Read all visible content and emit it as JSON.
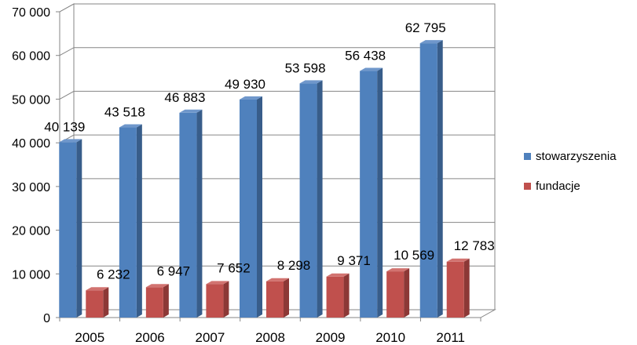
{
  "chart_data": {
    "type": "bar",
    "categories": [
      "2005",
      "2006",
      "2007",
      "2008",
      "2009",
      "2010",
      "2011"
    ],
    "series": [
      {
        "name": "stowarzyszenia",
        "values": [
          40139,
          43518,
          46883,
          49930,
          53598,
          56438,
          62795
        ],
        "labels": [
          "40 139",
          "43 518",
          "46 883",
          "49 930",
          "53 598",
          "56 438",
          "62 795"
        ],
        "color": "#4F81BD",
        "side": "#385D8A",
        "top": "#6F97CB"
      },
      {
        "name": "fundacje",
        "values": [
          6232,
          6947,
          7652,
          8298,
          9371,
          10569,
          12783
        ],
        "labels": [
          "6 232",
          "6 947",
          "7 652",
          "8 298",
          "9 371",
          "10 569",
          "12 783"
        ],
        "color": "#C0504D",
        "side": "#8C3836",
        "top": "#D27370"
      }
    ],
    "y_ticks": [
      "0",
      "10 000",
      "20 000",
      "30 000",
      "40 000",
      "50 000",
      "60 000",
      "70 000"
    ],
    "ylim": [
      0,
      70000
    ],
    "title": "",
    "xlabel": "",
    "ylabel": "",
    "grid": true,
    "legend": "right"
  }
}
